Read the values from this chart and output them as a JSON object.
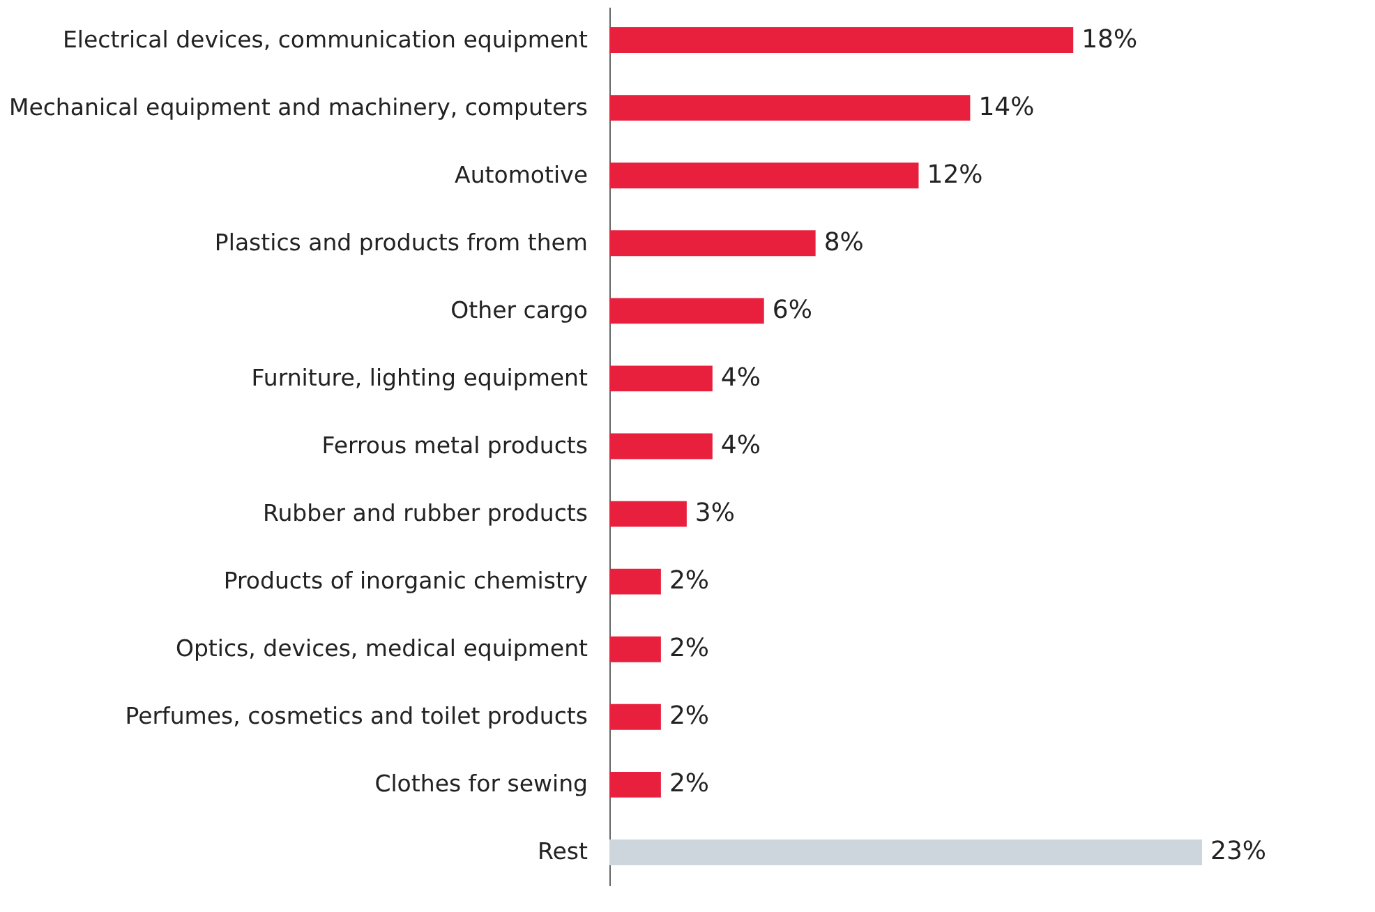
{
  "chart_data": {
    "type": "bar",
    "orientation": "horizontal",
    "categories": [
      "Electrical devices, communication equipment",
      "Mechanical equipment and machinery, computers",
      "Automotive",
      "Plastics and products from them",
      "Other cargo",
      "Furniture, lighting equipment",
      "Ferrous metal products",
      "Rubber and rubber products",
      "Products of inorganic chemistry",
      "Optics, devices, medical equipment",
      "Perfumes, cosmetics and toilet products",
      "Clothes for sewing",
      "Rest"
    ],
    "values": [
      18,
      14,
      12,
      8,
      6,
      4,
      4,
      3,
      2,
      2,
      2,
      2,
      23
    ],
    "colors": [
      "#e8203d",
      "#e8203d",
      "#e8203d",
      "#e8203d",
      "#e8203d",
      "#e8203d",
      "#e8203d",
      "#e8203d",
      "#e8203d",
      "#e8203d",
      "#e8203d",
      "#e8203d",
      "#cdd6dd"
    ],
    "value_labels": [
      "18%",
      "14%",
      "12%",
      "8%",
      "6%",
      "4%",
      "4%",
      "3%",
      "2%",
      "2%",
      "2%",
      "2%",
      "23%"
    ]
  }
}
